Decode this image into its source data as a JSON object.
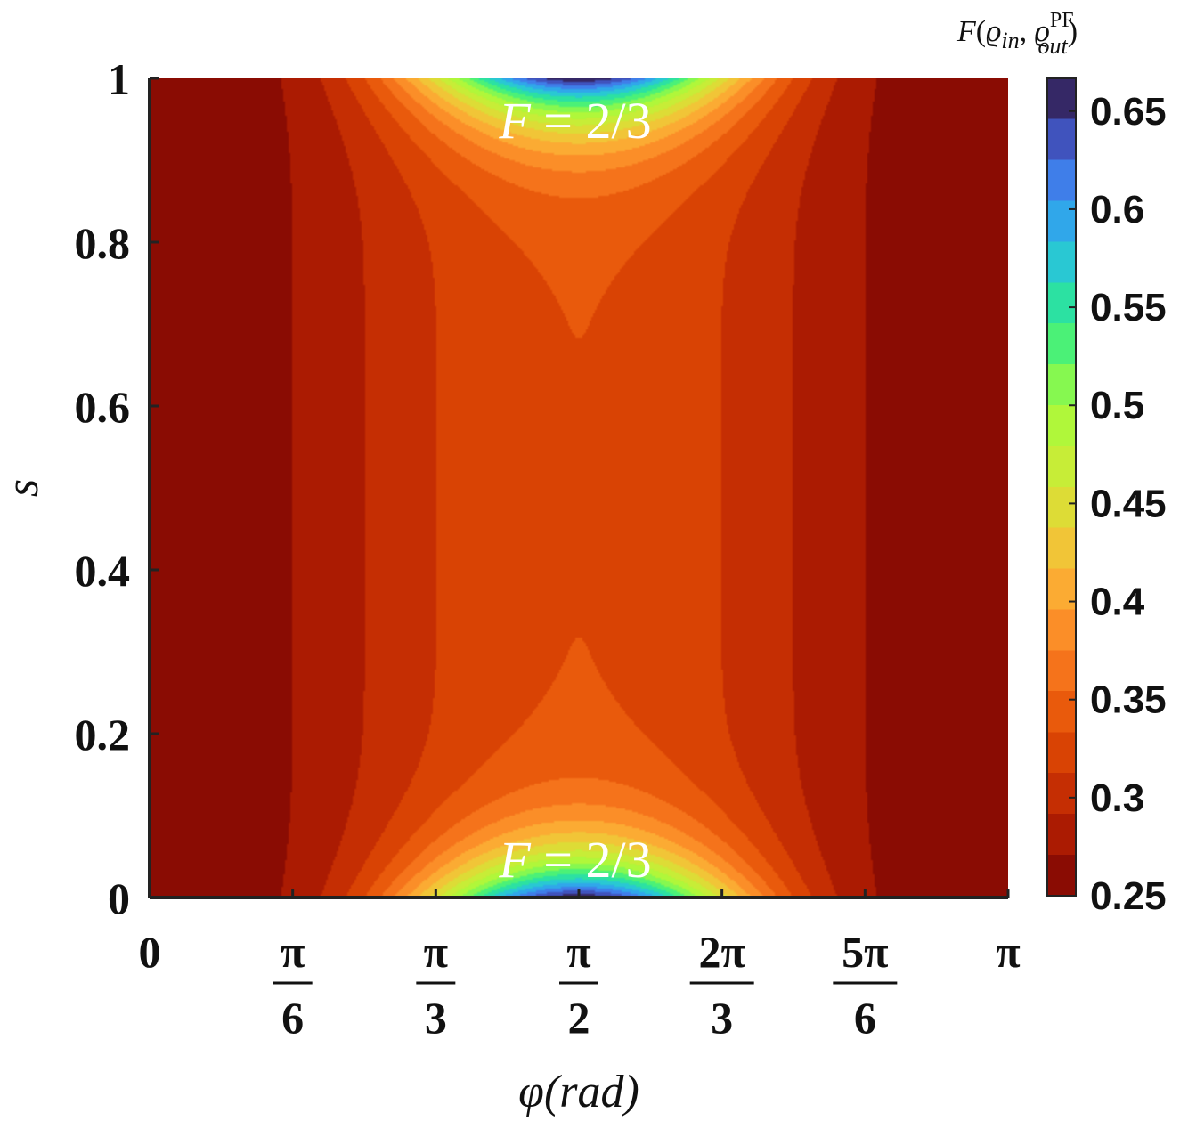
{
  "chart_data": {
    "type": "heatmap",
    "subtype": "filled-contour",
    "title": "",
    "xlabel": "φ(rad)",
    "ylabel": "s",
    "xlim": [
      0,
      3.14159
    ],
    "ylim": [
      0,
      1
    ],
    "x_ticks": [
      {
        "value": 0,
        "label": "0"
      },
      {
        "value": 0.5236,
        "label": "π/6",
        "num": "π",
        "den": "6"
      },
      {
        "value": 1.0472,
        "label": "π/3",
        "num": "π",
        "den": "3"
      },
      {
        "value": 1.5708,
        "label": "π/2",
        "num": "π",
        "den": "2"
      },
      {
        "value": 2.0944,
        "label": "2π/3",
        "num": "2π",
        "den": "3"
      },
      {
        "value": 2.618,
        "label": "5π/6",
        "num": "5π",
        "den": "6"
      },
      {
        "value": 3.14159,
        "label": "π"
      }
    ],
    "y_ticks": [
      {
        "value": 0,
        "label": "0"
      },
      {
        "value": 0.2,
        "label": "0.2"
      },
      {
        "value": 0.4,
        "label": "0.4"
      },
      {
        "value": 0.6,
        "label": "0.6"
      },
      {
        "value": 0.8,
        "label": "0.8"
      },
      {
        "value": 1,
        "label": "1"
      }
    ],
    "colorbar": {
      "title": "F(ϱ̂in, ϱ̂out PF)",
      "title_parts": {
        "f": "F",
        "open": "(",
        "rho1": "ϱ",
        "sub1": "in",
        "comma": ", ",
        "rho2": "ϱ",
        "sup2": "PF",
        "sub2": "out",
        "close": ")"
      },
      "range": [
        0.25,
        0.6667
      ],
      "ticks": [
        {
          "value": 0.25,
          "label": "0.25"
        },
        {
          "value": 0.3,
          "label": "0.3"
        },
        {
          "value": 0.35,
          "label": "0.35"
        },
        {
          "value": 0.4,
          "label": "0.4"
        },
        {
          "value": 0.45,
          "label": "0.45"
        },
        {
          "value": 0.5,
          "label": "0.5"
        },
        {
          "value": 0.55,
          "label": "0.55"
        },
        {
          "value": 0.6,
          "label": "0.6"
        },
        {
          "value": 0.65,
          "label": "0.65"
        }
      ],
      "colormap": [
        "#7a0403",
        "#bb2302",
        "#e34d05",
        "#fb8022",
        "#fbb938",
        "#d3e835",
        "#a4fc3c",
        "#2eee8a",
        "#28bceb",
        "#4669e9",
        "#30123b"
      ]
    },
    "level_values": [
      0.2709,
      0.2918,
      0.3126,
      0.3334,
      0.3543,
      0.3751,
      0.3959,
      0.4168,
      0.4376,
      0.4584,
      0.4793,
      0.5001,
      0.521,
      0.5418,
      0.5626,
      0.5835,
      0.6043,
      0.6251,
      0.646
    ],
    "annotations": [
      {
        "text": "F = 2/3",
        "f": "F",
        "eq": " = 2/3",
        "at": {
          "x": 1.5708,
          "y": 0.94
        }
      },
      {
        "text": "F = 2/3",
        "f": "F",
        "eq": " = 2/3",
        "at": {
          "x": 1.5708,
          "y": 0.05
        }
      }
    ],
    "max_value": 0.6667,
    "max_locations": [
      {
        "x": 1.5708,
        "y": 0
      },
      {
        "x": 1.5708,
        "y": 1
      }
    ],
    "min_value": 0.25,
    "min_locations": [
      {
        "x": 0,
        "y": 0.5
      },
      {
        "x": 3.14159,
        "y": 0.5
      }
    ],
    "grid": false,
    "legend": "colorbar-right"
  }
}
